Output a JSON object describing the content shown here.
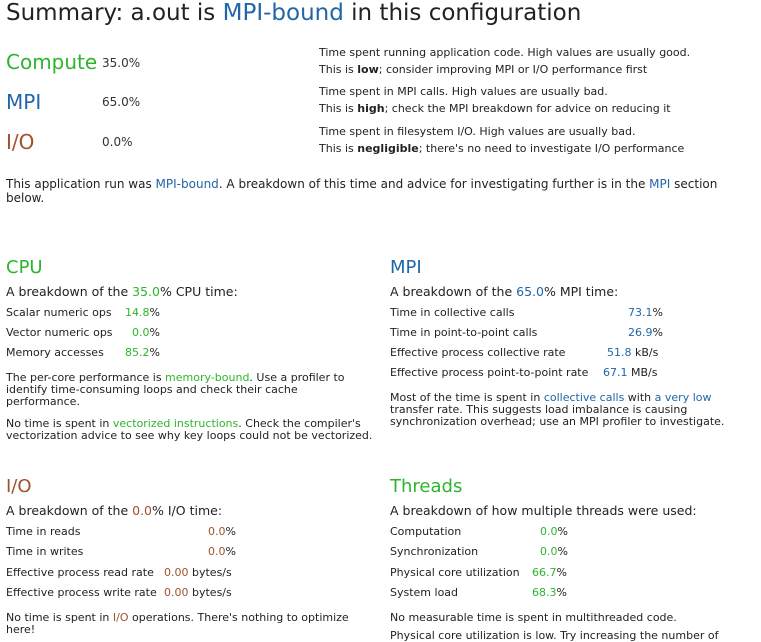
{
  "title": {
    "prefix": "Summary: a.out is ",
    "highlight": "MPI-bound",
    "suffix": " in this configuration"
  },
  "metrics": [
    {
      "name": "Compute",
      "value": "35.0%",
      "line1": "Time spent running application code. High values are usually good.",
      "line2_pre": "This is ",
      "line2_bold": "low",
      "line2_post": "; consider improving MPI or I/O performance first"
    },
    {
      "name": "MPI",
      "value": "65.0%",
      "line1": "Time spent in MPI calls. High values are usually bad.",
      "line2_pre": "This is ",
      "line2_bold": "high",
      "line2_post": "; check the MPI breakdown for advice on reducing it"
    },
    {
      "name": "I/O",
      "value": "0.0%",
      "line1": "Time spent in filesystem I/O. High values are usually bad.",
      "line2_pre": "This is ",
      "line2_bold": "negligible",
      "line2_post": "; there's no need to investigate I/O performance"
    }
  ],
  "summary": {
    "pre": "This application run was ",
    "link1": "MPI-bound",
    "mid": ". A breakdown of this time and advice for investigating further is in the ",
    "link2": "MPI",
    "post": " section below."
  },
  "cpu": {
    "title": "CPU",
    "sub_pre": "A breakdown of the ",
    "sub_val": "35.0",
    "sub_post": "% CPU time:",
    "rows": [
      {
        "label": "Scalar numeric ops",
        "value": "14.8",
        "unit": "%"
      },
      {
        "label": "Vector numeric ops",
        "value": "0.0",
        "unit": "%"
      },
      {
        "label": "Memory accesses",
        "value": "85.2",
        "unit": "%"
      }
    ],
    "p1_pre": "The per-core performance is ",
    "p1_link": "memory-bound",
    "p1_post": ". Use a profiler to identify time-consuming loops and check their cache performance.",
    "p2_pre": "No time is spent in ",
    "p2_link": "vectorized instructions",
    "p2_post": ". Check the compiler's vectorization advice to see why key loops could not be vectorized."
  },
  "mpi": {
    "title": "MPI",
    "sub_pre": "A breakdown of the ",
    "sub_val": "65.0",
    "sub_post": "% MPI time:",
    "rows": [
      {
        "label": "Time in collective calls",
        "value": "73.1",
        "unit": "%"
      },
      {
        "label": "Time in point-to-point calls",
        "value": "26.9",
        "unit": "%"
      },
      {
        "label": "Effective process collective rate",
        "value": "51.8",
        "unit": " kB/s"
      },
      {
        "label": "Effective process point-to-point rate",
        "value": "67.1",
        "unit": " MB/s"
      }
    ],
    "p1_pre": "Most of the time is spent in ",
    "p1_link1": "collective calls",
    "p1_mid": " with ",
    "p1_link2": "a very low",
    "p1_post": " transfer rate. This suggests load imbalance is causing synchronization overhead; use an MPI profiler to investigate."
  },
  "io": {
    "title": "I/O",
    "sub_pre": "A breakdown of the ",
    "sub_val": "0.0",
    "sub_post": "% I/O time:",
    "rows": [
      {
        "label": "Time in reads",
        "value": "0.0",
        "unit": "%"
      },
      {
        "label": "Time in writes",
        "value": "0.0",
        "unit": "%"
      },
      {
        "label": "Effective process read rate",
        "value": "0.00",
        "unit": " bytes/s"
      },
      {
        "label": "Effective process write rate",
        "value": "0.00",
        "unit": " bytes/s"
      }
    ],
    "p1_pre": "No time is spent in ",
    "p1_link": "I/O",
    "p1_post": " operations. There's nothing to optimize here!"
  },
  "threads": {
    "title": "Threads",
    "sub": "A breakdown of how multiple threads were used:",
    "rows": [
      {
        "label": "Computation",
        "value": "0.0",
        "unit": "%"
      },
      {
        "label": "Synchronization",
        "value": "0.0",
        "unit": "%"
      },
      {
        "label": "Physical core utilization",
        "value": "66.7",
        "unit": "%"
      },
      {
        "label": "System load",
        "value": "68.3",
        "unit": "%"
      }
    ],
    "p1": "No measurable time is spent in multithreaded code.",
    "p2": "Physical core utilization is low. Try increasing the number of"
  },
  "colors": {
    "compute": "#2db52d",
    "mpi": "#2166a8",
    "io": "#a0522d"
  }
}
